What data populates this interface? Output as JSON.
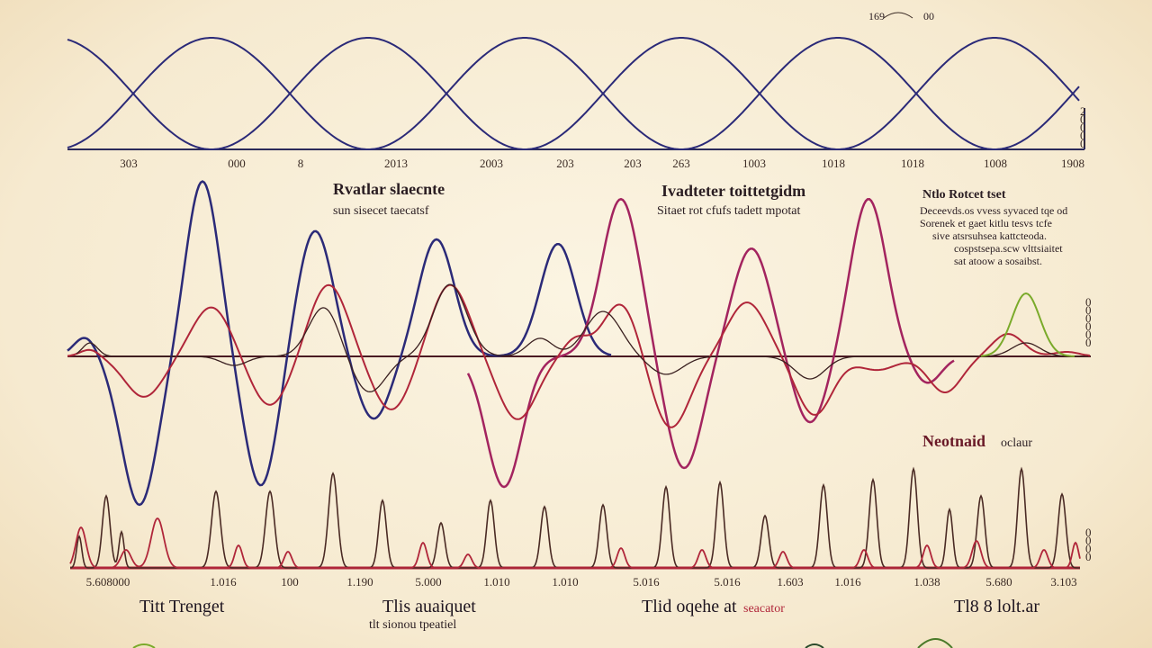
{
  "colors": {
    "navy": "#2b2a78",
    "crimson": "#b0263a",
    "magenta": "#a3245f",
    "brown": "#4a2a24",
    "green": "#7aaa2a",
    "axis": "#2b2a5a"
  },
  "chart_data": [
    {
      "type": "line",
      "panel": "top",
      "x_ticks": [
        "303",
        "000",
        "8",
        "2013",
        "2003",
        "203",
        "203",
        "263",
        "1003",
        "1018",
        "1018",
        "1008",
        "1908"
      ],
      "corner_text": "169",
      "corner_text_2": "00",
      "side_marks": [
        "2",
        "0",
        "0",
        "0",
        "0"
      ],
      "series": [
        {
          "color": "navy",
          "shape": "cosine",
          "amplitude": 1,
          "period": 348,
          "phase": 0
        },
        {
          "color": "navy",
          "shape": "sine",
          "amplitude": 1,
          "period": 348,
          "phase": 174
        }
      ]
    },
    {
      "type": "line",
      "panel": "middle",
      "annotations": [
        {
          "title": "Rvatlar slaecnte",
          "subtitle": "sun sisecet taecatsf"
        },
        {
          "title": "Ivadteter toittetgidm",
          "subtitle": "Sitaet rot cfufs tadett mpotat"
        },
        {
          "title": "Ntlo Rotcet tset",
          "lines": [
            "Deceevds.os vvess syvaced tqe od",
            "Sorenek et gaet kitlu tesvs tcfe",
            "sive atsrsuhsea kattcteoda.",
            "cospstsepa.scw vlttsiaitet",
            "sat atoow a sosaibst."
          ]
        }
      ],
      "side_marks": [
        "0",
        "0",
        "0",
        "0",
        "0",
        "0"
      ],
      "series_colors": [
        "navy",
        "crimson",
        "magenta",
        "brown",
        "green"
      ]
    },
    {
      "type": "line",
      "panel": "bottom",
      "panel_title": "Neotnaid",
      "panel_title_suffix": "oclaur",
      "x_ticks": [
        "5.608000",
        "1.016",
        "100",
        "1.190",
        "5.000",
        "1.010",
        "1.010",
        "5.016",
        "5.016",
        "1.603",
        "1.016",
        "1.038",
        "5.680",
        "3.103"
      ],
      "side_marks": [
        "0",
        "0",
        "0",
        "0"
      ],
      "series_colors": [
        "brown",
        "crimson"
      ]
    }
  ],
  "footer_labels": [
    {
      "title": "Titt Trenget",
      "sub": ""
    },
    {
      "title": "Tlis auaiquet",
      "sub": "tlt sionou tpeatiel"
    },
    {
      "title": "Tlid oqehe at",
      "accent": "seacator",
      "sub": ""
    },
    {
      "title": "Tl8 8 lolt.ar",
      "sub": ""
    }
  ]
}
